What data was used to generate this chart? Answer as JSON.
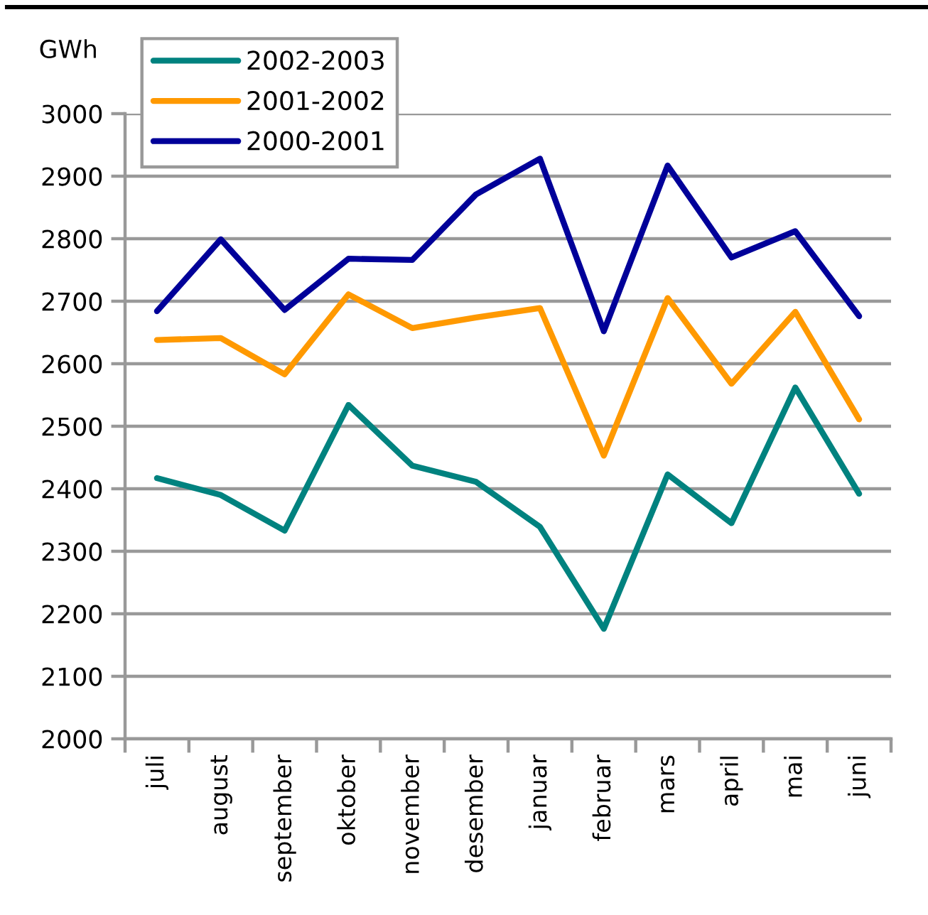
{
  "chart_data": {
    "type": "line",
    "ylabel": "GWh",
    "categories": [
      "juli",
      "august",
      "september",
      "oktober",
      "november",
      "desember",
      "januar",
      "februar",
      "mars",
      "april",
      "mai",
      "juni"
    ],
    "series": [
      {
        "name": "2002-2003",
        "color": "#00827f",
        "values": [
          2417,
          2390,
          2333,
          2534,
          2437,
          2411,
          2339,
          2176,
          2423,
          2345,
          2562,
          2392
        ]
      },
      {
        "name": "2001-2002",
        "color": "#ff9900",
        "values": [
          2638,
          2641,
          2583,
          2711,
          2657,
          2674,
          2689,
          2453,
          2705,
          2568,
          2683,
          2511
        ]
      },
      {
        "name": "2000-2001",
        "color": "#000099",
        "values": [
          2684,
          2799,
          2686,
          2768,
          2766,
          2871,
          2928,
          2652,
          2917,
          2770,
          2812,
          2676
        ]
      }
    ],
    "ylim": [
      2000,
      3000
    ],
    "yticks": [
      2000,
      2100,
      2200,
      2300,
      2400,
      2500,
      2600,
      2700,
      2800,
      2900,
      3000
    ],
    "grid": "y",
    "legend": "top left",
    "marker": "none",
    "line_style": "solid"
  }
}
